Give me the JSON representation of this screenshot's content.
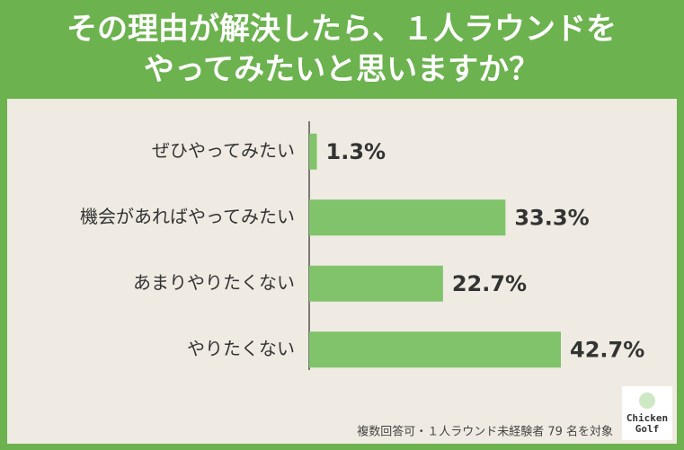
{
  "chart_data": {
    "type": "barh",
    "title": [
      "その理由が解決したら、１人ラウンドを",
      "やってみたいと思いますか？"
    ],
    "categories": [
      "ぜひやってみたい",
      "機会があればやってみたい",
      "あまりやりたくない",
      "やりたくない"
    ],
    "values": [
      1.3,
      33.3,
      22.7,
      42.7
    ],
    "value_labels": [
      "1.3%",
      "33.3%",
      "22.7%",
      "42.7%"
    ],
    "color": "#80c36b",
    "note": "複数回答可・１人ラウンド未経験者 79 名を対象",
    "logo": [
      "Chicken",
      "Golf"
    ]
  }
}
